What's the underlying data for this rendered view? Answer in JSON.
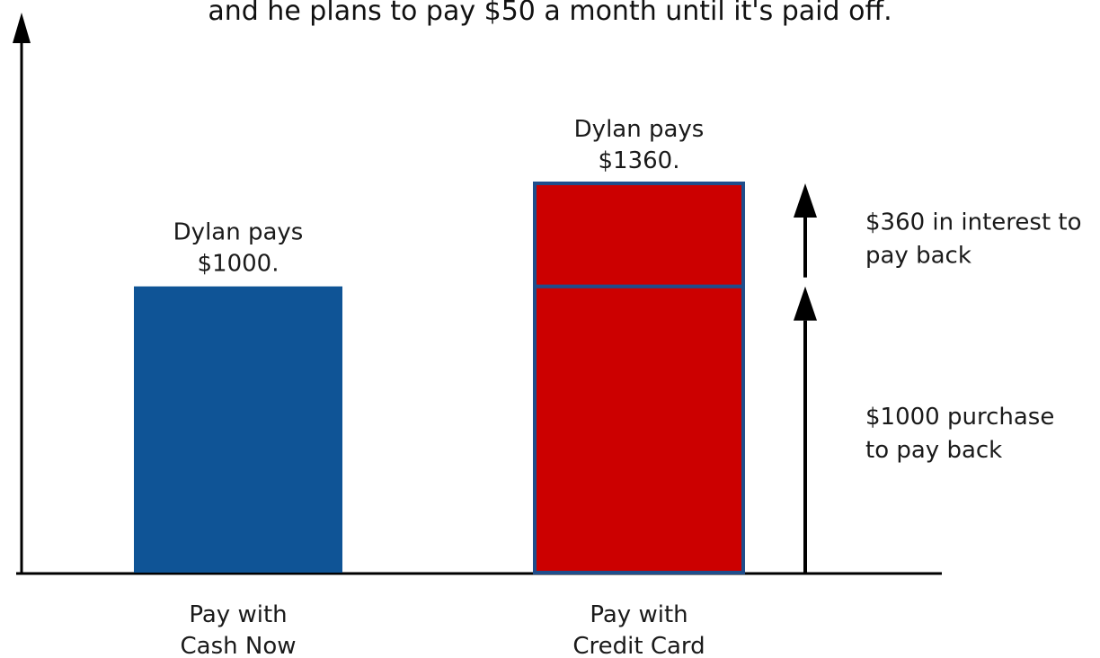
{
  "chart_data": {
    "type": "bar",
    "title": "and he plans to pay $50 a month until it's paid off.",
    "xlabel": "",
    "ylabel": "",
    "ylim": [
      0,
      1360
    ],
    "categories": [
      "Pay with\nCash Now",
      "Pay with\nCredit Card"
    ],
    "stacks": [
      {
        "category": "Pay with\nCash Now",
        "segments": [
          {
            "value": 1000,
            "color": "#0f5496"
          }
        ],
        "total_label": "Dylan pays\n$1000."
      },
      {
        "category": "Pay with\nCredit Card",
        "segments": [
          {
            "value": 1000,
            "color": "#cc0000"
          },
          {
            "value": 360,
            "color": "#cc0000"
          }
        ],
        "total_label": "Dylan pays\n$1360."
      }
    ],
    "annotations": [
      {
        "text": "$1000 purchase\nto pay back",
        "from": 0,
        "to": 1000
      },
      {
        "text": "$360 in interest to\npay back",
        "from": 1000,
        "to": 1360
      }
    ],
    "bar_border_color": "#1f4e8c",
    "axis_color": "#000000"
  }
}
